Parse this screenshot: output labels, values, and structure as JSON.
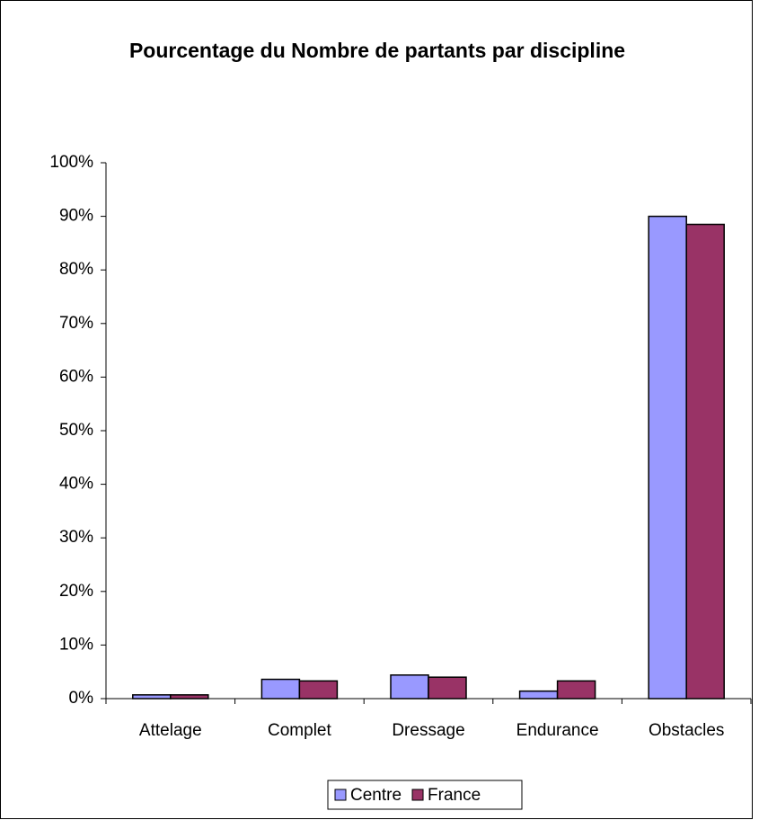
{
  "chart_data": {
    "type": "bar",
    "title": "Pourcentage du Nombre de partants par discipline",
    "categories": [
      "Attelage",
      "Complet",
      "Dressage",
      "Endurance",
      "Obstacles"
    ],
    "series": [
      {
        "name": "Centre",
        "color": "#9999ff",
        "values": [
          0.7,
          3.6,
          4.4,
          1.4,
          90.0
        ]
      },
      {
        "name": "France",
        "color": "#993366",
        "values": [
          0.7,
          3.3,
          4.0,
          3.3,
          88.5
        ]
      }
    ],
    "ylim": [
      0,
      100
    ],
    "yticks": [
      {
        "value": 0,
        "label": "0%"
      },
      {
        "value": 10,
        "label": "10%"
      },
      {
        "value": 20,
        "label": "20%"
      },
      {
        "value": 30,
        "label": "30%"
      },
      {
        "value": 40,
        "label": "40%"
      },
      {
        "value": 50,
        "label": "50%"
      },
      {
        "value": 60,
        "label": "60%"
      },
      {
        "value": 70,
        "label": "70%"
      },
      {
        "value": 80,
        "label": "80%"
      },
      {
        "value": 90,
        "label": "90%"
      },
      {
        "value": 100,
        "label": "100%"
      }
    ],
    "legend": "bottom"
  }
}
